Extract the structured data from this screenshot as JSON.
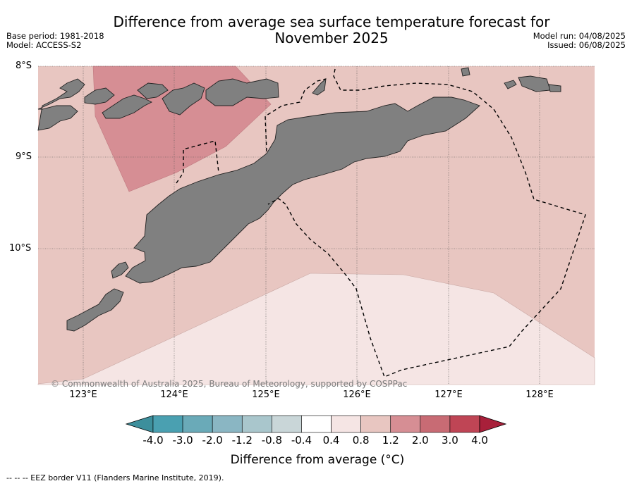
{
  "title": {
    "line1": "Difference from average sea surface temperature forecast for",
    "line2": "November 2025"
  },
  "meta": {
    "base_period": "Base period: 1981-2018",
    "model": "Model: ACCESS-S2",
    "model_run": "Model run: 04/08/2025",
    "issued": "Issued: 06/08/2025"
  },
  "axes": {
    "lat_labels": [
      "8°S",
      "9°S",
      "10°S"
    ],
    "lon_labels": [
      "123°E",
      "124°E",
      "125°E",
      "126°E",
      "127°E",
      "128°E"
    ]
  },
  "copyright": "© Commonwealth of Australia 2025, Bureau of Meteorology, supported by COSPPac",
  "colorbar": {
    "title": "Difference from average (°C)",
    "ticks": [
      "-4.0",
      "-3.0",
      "-2.0",
      "-1.2",
      "-0.8",
      "-0.4",
      "0.4",
      "0.8",
      "1.2",
      "2.0",
      "3.0",
      "4.0"
    ],
    "colors": [
      "#3d8f9c",
      "#4aa0b1",
      "#6aaab8",
      "#8ab6c3",
      "#a9c6cc",
      "#c9d6d8",
      "#ffffff",
      "#f5e5e4",
      "#e8c6c1",
      "#d68e94",
      "#c86b74",
      "#bf4555",
      "#a8203a"
    ]
  },
  "map_colors": {
    "ocean_0.8_1.2": "#e8c6c1",
    "ocean_0.4_0.8": "#f5e5e4",
    "ocean_1.2_2.0": "#d68e94",
    "land": "#808080"
  },
  "eez_note": "--  --  -- EEZ border V11 (Flanders Marine Institute, 2019)."
}
